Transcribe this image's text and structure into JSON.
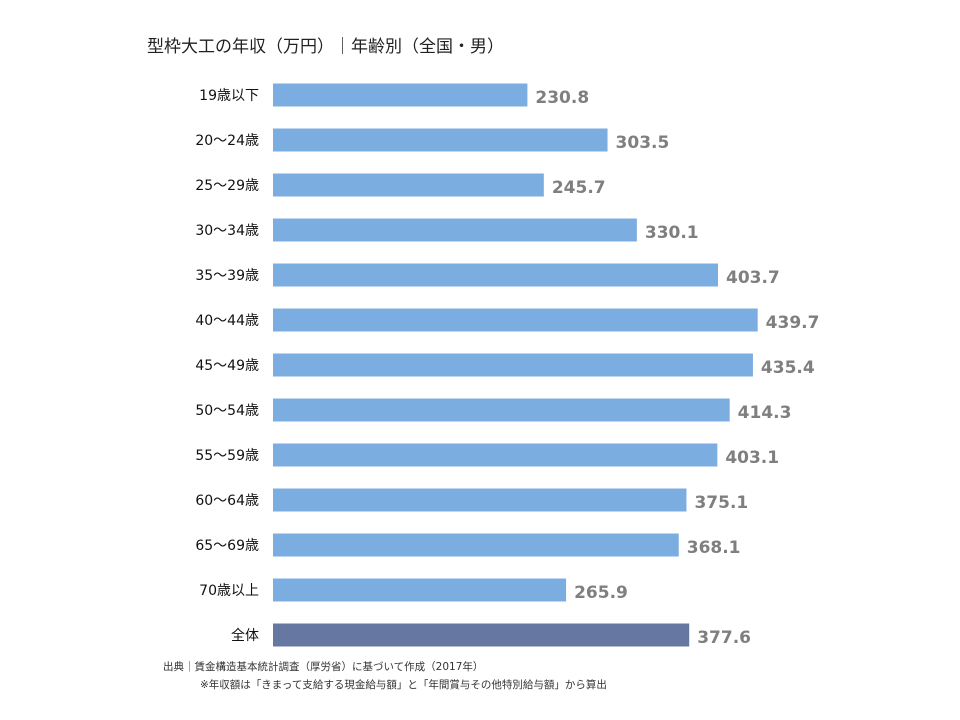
{
  "chart_data": {
    "type": "bar",
    "orientation": "horizontal",
    "title": "型枠大工の年収（万円）｜年齢別（全国・男）",
    "categories": [
      "19歳以下",
      "20～24歳",
      "25～29歳",
      "30～34歳",
      "35～39歳",
      "40～44歳",
      "45～49歳",
      "50～54歳",
      "55～59歳",
      "60～64歳",
      "65～69歳",
      "70歳以上",
      "全体"
    ],
    "values": [
      230.8,
      303.5,
      245.7,
      330.1,
      403.7,
      439.7,
      435.4,
      414.3,
      403.1,
      375.1,
      368.1,
      265.9,
      377.6
    ],
    "value_labels": [
      "230.8",
      "303.5",
      "245.7",
      "330.1",
      "403.7",
      "439.7",
      "435.4",
      "414.3",
      "403.1",
      "375.1",
      "368.1",
      "265.9",
      "377.6"
    ],
    "xlim": [
      0,
      440
    ],
    "grid": false,
    "legend": "none",
    "colors": {
      "bar": "#7cade0",
      "bar_total": "#6678a2",
      "value_label": "#7f7f7f"
    }
  },
  "notes": {
    "source": "出典｜賃金構造基本統計調査（厚労省）に基づいて作成（2017年）",
    "calculation": "※年収額は「きまって支給する現金給与額」と「年間賞与その他特別給与額」から算出"
  }
}
